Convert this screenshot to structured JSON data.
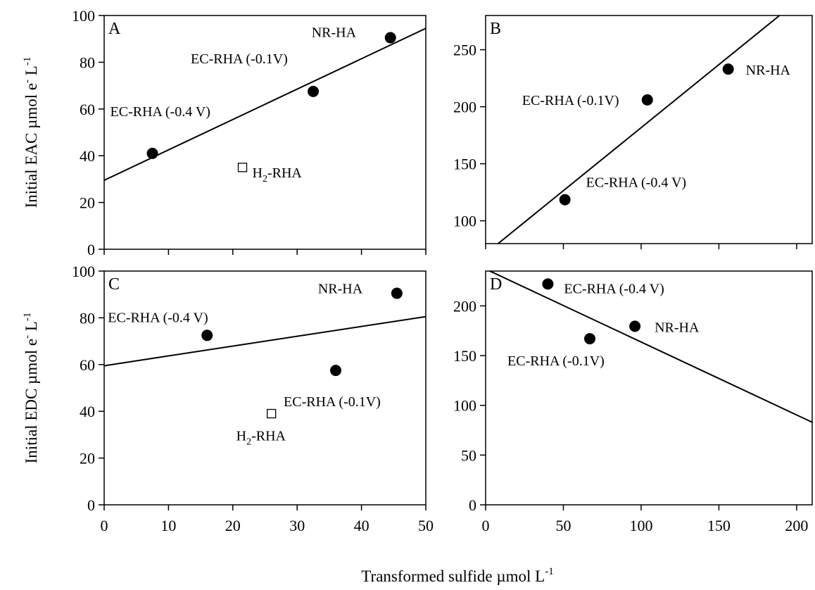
{
  "figure": {
    "y_title_top": "Initial EAC  µmol e",
    "y_title_bottom": "Initial EDC  µmol e",
    "y_title_sup1": "-",
    "y_title_mid": " L",
    "y_title_sup2": "-1",
    "x_title": "Transformed sulfide µmol L",
    "x_title_sup": "-1"
  },
  "chart_data": [
    {
      "type": "scatter",
      "panel": "A",
      "xlim": [
        0,
        50
      ],
      "ylim": [
        0,
        100
      ],
      "xticks": [
        0,
        10,
        20,
        30,
        40,
        50
      ],
      "yticks": [
        0,
        20,
        40,
        60,
        80,
        100
      ],
      "show_x_tick_labels": false,
      "show_y_tick_labels": true,
      "points": [
        {
          "label": "EC-RHA (-0.4 V)",
          "x": 7.5,
          "y": 41,
          "marker": "filled-circle"
        },
        {
          "label": "EC-RHA (-0.1V)",
          "x": 32.5,
          "y": 67.5,
          "marker": "filled-circle"
        },
        {
          "label": "NR-HA",
          "x": 44.5,
          "y": 90.5,
          "marker": "filled-circle"
        },
        {
          "label": "H2-RHA",
          "label_main": "H",
          "label_sub": "2",
          "label_tail": "-RHA",
          "x": 21.5,
          "y": 35,
          "marker": "open-square"
        }
      ],
      "fit_line": {
        "x": [
          0,
          50
        ],
        "y": [
          29.5,
          94.5
        ]
      }
    },
    {
      "type": "scatter",
      "panel": "B",
      "xlim": [
        0,
        210
      ],
      "ylim": [
        80,
        280
      ],
      "xticks": [
        0,
        50,
        100,
        150,
        200
      ],
      "yticks": [
        100,
        150,
        200,
        250
      ],
      "show_x_tick_labels": false,
      "show_y_tick_labels": true,
      "points": [
        {
          "label": "EC-RHA (-0.4 V)",
          "x": 51,
          "y": 118.5,
          "marker": "filled-circle"
        },
        {
          "label": "EC-RHA (-0.1V)",
          "x": 104,
          "y": 206,
          "marker": "filled-circle"
        },
        {
          "label": "NR-HA",
          "x": 156,
          "y": 233,
          "marker": "filled-circle"
        }
      ],
      "fit_line": {
        "x": [
          8,
          189
        ],
        "y": [
          80,
          280
        ]
      }
    },
    {
      "type": "scatter",
      "panel": "C",
      "xlim": [
        0,
        50
      ],
      "ylim": [
        0,
        100
      ],
      "xticks": [
        0,
        10,
        20,
        30,
        40,
        50
      ],
      "yticks": [
        0,
        20,
        40,
        60,
        80,
        100
      ],
      "show_x_tick_labels": true,
      "show_y_tick_labels": true,
      "points": [
        {
          "label": "EC-RHA (-0.4 V)",
          "x": 16,
          "y": 72.5,
          "marker": "filled-circle"
        },
        {
          "label": "EC-RHA (-0.1V)",
          "x": 36,
          "y": 57.5,
          "marker": "filled-circle"
        },
        {
          "label": "NR-HA",
          "x": 45.5,
          "y": 90.5,
          "marker": "filled-circle"
        },
        {
          "label": "H2-RHA",
          "label_main": "H",
          "label_sub": "2",
          "label_tail": "-RHA",
          "x": 26,
          "y": 39,
          "marker": "open-square"
        }
      ],
      "fit_line": {
        "x": [
          0,
          50
        ],
        "y": [
          59.5,
          80.5
        ]
      }
    },
    {
      "type": "scatter",
      "panel": "D",
      "xlim": [
        0,
        210
      ],
      "ylim": [
        0,
        235
      ],
      "xticks": [
        0,
        50,
        100,
        150,
        200
      ],
      "yticks": [
        0,
        50,
        100,
        150,
        200
      ],
      "show_x_tick_labels": true,
      "show_y_tick_labels": true,
      "points": [
        {
          "label": "EC-RHA (-0.4 V)",
          "x": 40,
          "y": 222,
          "marker": "filled-circle"
        },
        {
          "label": "EC-RHA (-0.1V)",
          "x": 67,
          "y": 167,
          "marker": "filled-circle"
        },
        {
          "label": "NR-HA",
          "x": 96,
          "y": 179.5,
          "marker": "filled-circle"
        }
      ],
      "fit_line": {
        "x": [
          0,
          210
        ],
        "y": [
          237,
          83
        ]
      }
    }
  ]
}
